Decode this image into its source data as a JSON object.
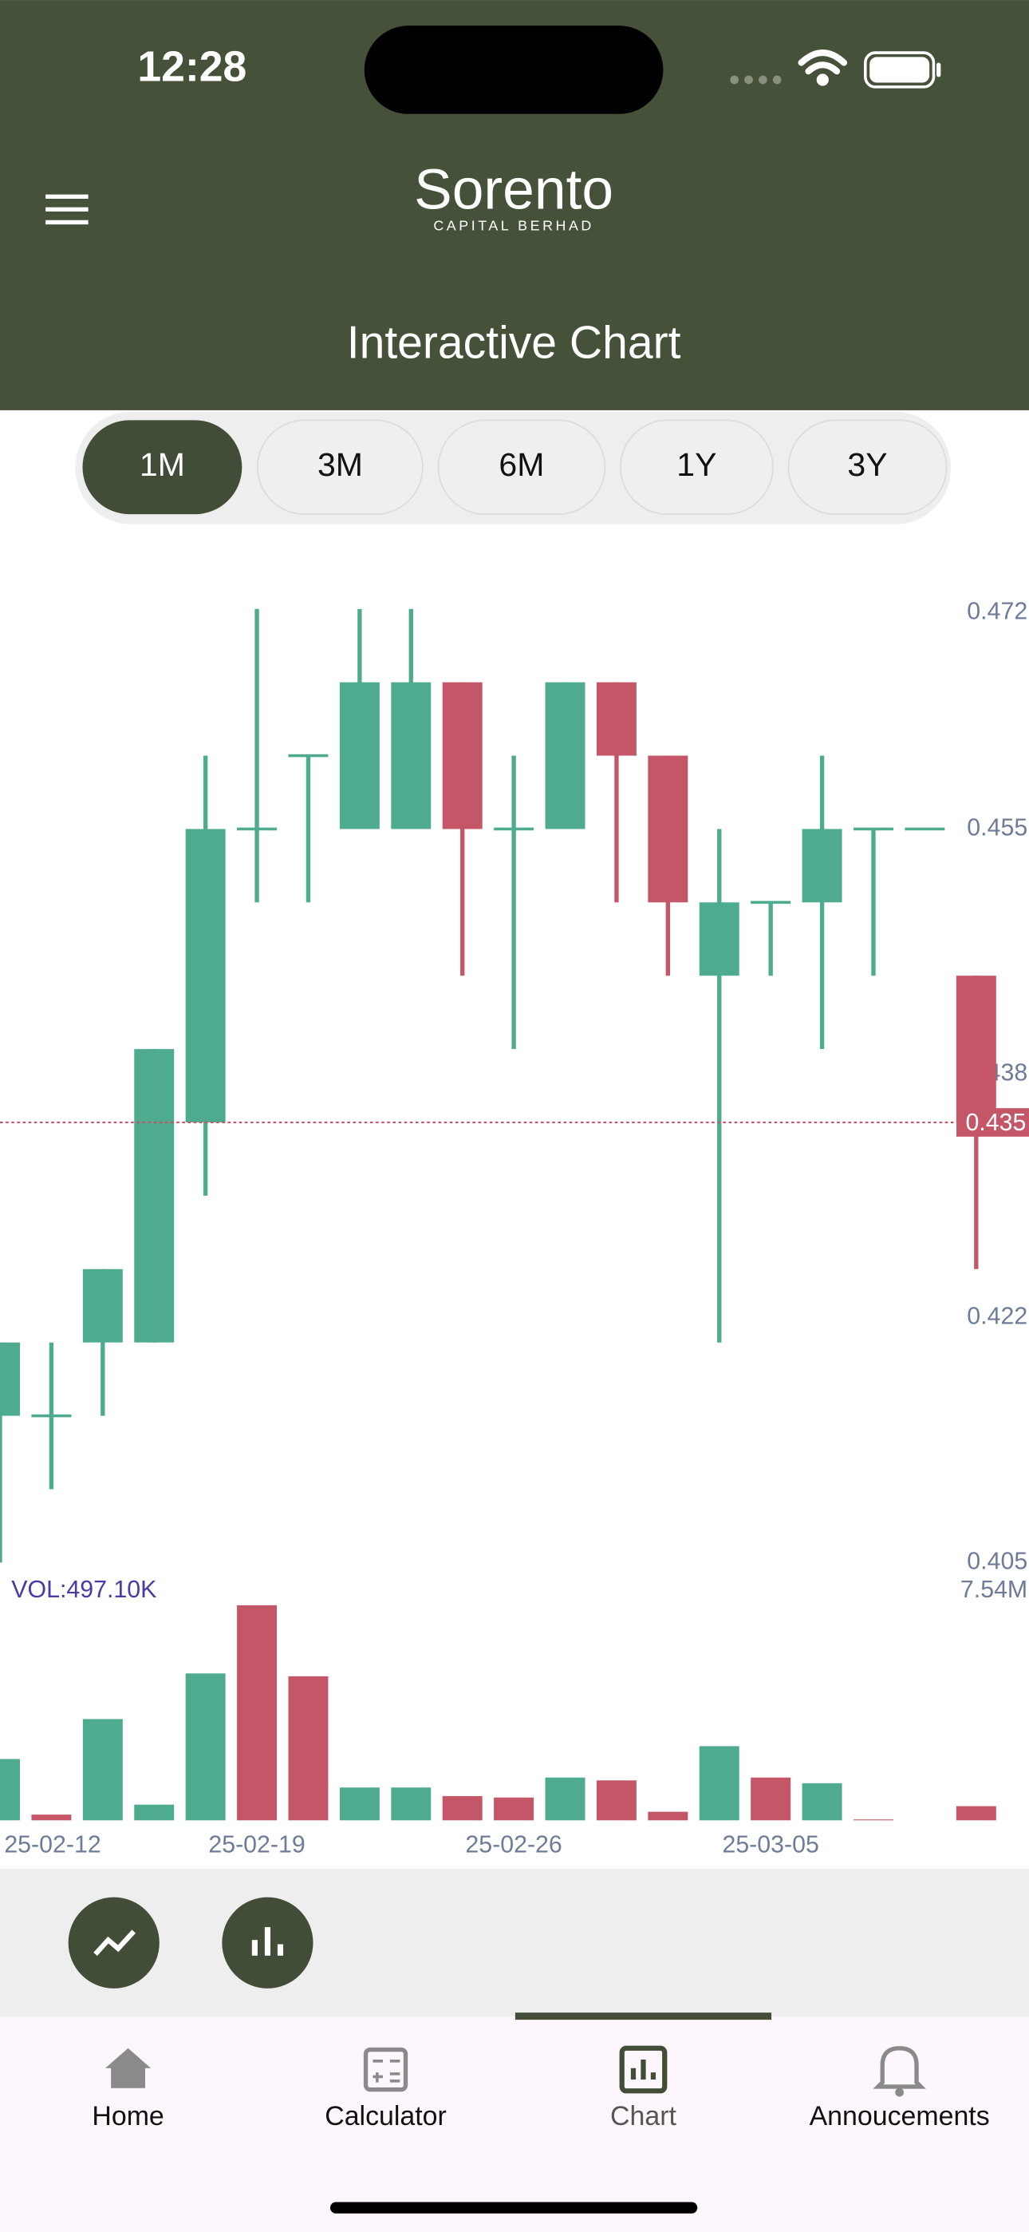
{
  "status_bar": {
    "time": "12:28"
  },
  "header": {
    "brand": "Sorento",
    "brand_sub": "CAPITAL BERHAD",
    "title": "Interactive Chart"
  },
  "ranges": {
    "options": [
      "1M",
      "3M",
      "6M",
      "1Y",
      "3Y"
    ],
    "selected": 0
  },
  "chart_data": {
    "type": "candlestick",
    "categories": [
      null,
      "25-02-12",
      null,
      null,
      null,
      "25-02-19",
      null,
      null,
      null,
      null,
      "25-02-26",
      null,
      null,
      null,
      null,
      "25-03-05",
      null,
      null,
      null,
      null
    ],
    "open": [
      0.415,
      0.415,
      0.42,
      0.42,
      0.435,
      0.455,
      0.46,
      0.455,
      0.455,
      0.465,
      0.455,
      0.455,
      0.465,
      0.46,
      0.445,
      0.45,
      0.45,
      0.455,
      0.455,
      0.445
    ],
    "high": [
      0.42,
      0.42,
      0.425,
      0.44,
      0.46,
      0.47,
      0.46,
      0.47,
      0.47,
      0.465,
      0.46,
      0.465,
      0.465,
      0.46,
      0.455,
      0.45,
      0.46,
      0.455,
      0.455,
      0.445
    ],
    "low": [
      0.405,
      0.41,
      0.415,
      0.42,
      0.43,
      0.45,
      0.45,
      0.455,
      0.455,
      0.445,
      0.44,
      0.455,
      0.45,
      0.445,
      0.42,
      0.445,
      0.44,
      0.445,
      0.455,
      0.425
    ],
    "close": [
      0.42,
      0.415,
      0.425,
      0.44,
      0.455,
      0.455,
      0.46,
      0.465,
      0.465,
      0.455,
      0.455,
      0.465,
      0.46,
      0.45,
      0.45,
      0.45,
      0.455,
      0.455,
      0.455,
      0.435
    ],
    "up_color": "#4fab8f",
    "down_color": "#c45667",
    "ylim": [
      0.4,
      0.475
    ],
    "yticks": [
      {
        "value": 0.405,
        "label": "0.405"
      },
      {
        "value": 0.4217,
        "label": "0.422"
      },
      {
        "value": 0.4383,
        "label": "0.438"
      },
      {
        "value": 0.455,
        "label": "0.455"
      },
      {
        "value": 0.4717,
        "label": "0.472"
      }
    ],
    "grid": false,
    "last_price": 0.435,
    "volume": {
      "label": "VOL:497.10K",
      "values": [
        2.15,
        0.2,
        3.55,
        0.55,
        5.15,
        7.54,
        5.05,
        1.15,
        1.15,
        0.85,
        0.8,
        1.5,
        1.4,
        0.3,
        2.6,
        1.5,
        1.3,
        0.03,
        0,
        0.4971
      ],
      "colors": [
        "#4fab8f",
        "#c45667",
        "#4fab8f",
        "#4fab8f",
        "#4fab8f",
        "#c45667",
        "#c45667",
        "#4fab8f",
        "#4fab8f",
        "#c45667",
        "#c45667",
        "#4fab8f",
        "#c45667",
        "#c45667",
        "#4fab8f",
        "#c45667",
        "#4fab8f",
        "#c45667",
        "#4fab8f",
        "#c45667"
      ],
      "ylim": [
        0,
        7.54
      ],
      "yticks": [
        {
          "value": 7.54,
          "label": "7.54M"
        }
      ]
    }
  },
  "nav": {
    "items": [
      "Home",
      "Calculator",
      "Chart",
      "Annoucements"
    ],
    "selected": 2
  }
}
